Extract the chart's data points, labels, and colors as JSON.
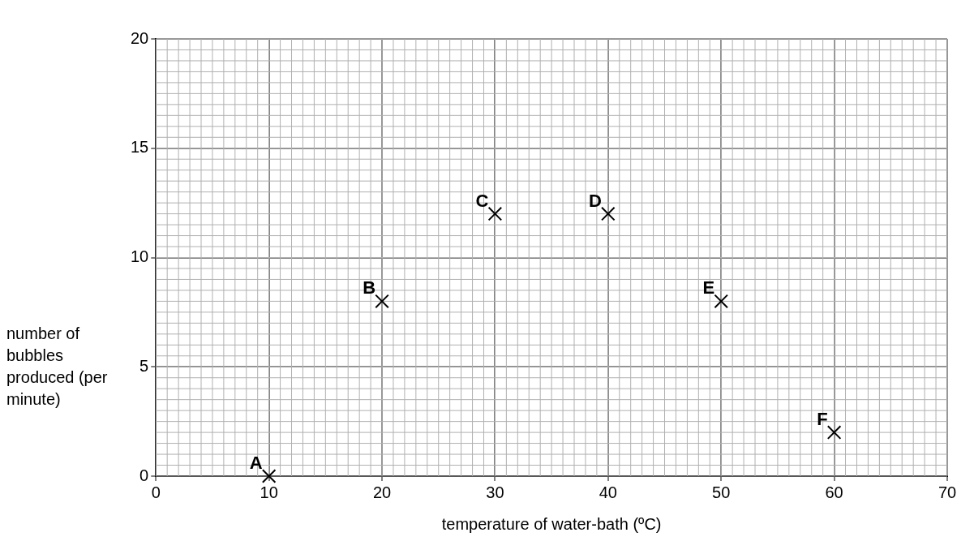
{
  "chart_data": {
    "type": "scatter",
    "xlabel": "temperature of water-bath (ºC)",
    "ylabel": "number of bubbles produced (per minute)",
    "x": [
      10,
      20,
      30,
      40,
      50,
      60
    ],
    "values": [
      0,
      8,
      12,
      12,
      8,
      2
    ],
    "color": "#000000",
    "marker": "cross",
    "grid": true,
    "legend": false,
    "xlim": [
      0,
      70
    ],
    "xticks": [
      0,
      10,
      20,
      30,
      40,
      50,
      60,
      70
    ],
    "ylim": [
      0,
      20
    ],
    "yticks": [
      0,
      5,
      10,
      15,
      20
    ],
    "annotations": [
      {
        "text": "A",
        "x": 10,
        "y": 0
      },
      {
        "text": "B",
        "x": 20,
        "y": 8
      },
      {
        "text": "C",
        "x": 30,
        "y": 12
      },
      {
        "text": "D",
        "x": 40,
        "y": 12
      },
      {
        "text": "E",
        "x": 50,
        "y": 8
      },
      {
        "text": "F",
        "x": 60,
        "y": 2
      }
    ]
  }
}
